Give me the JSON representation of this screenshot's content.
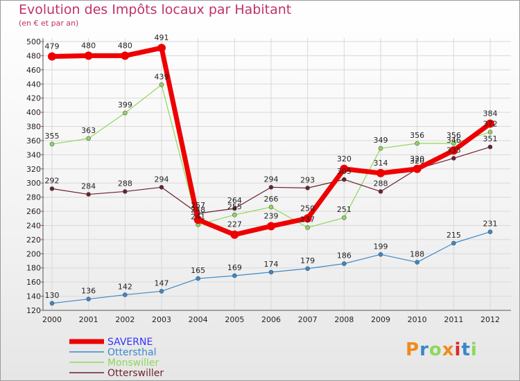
{
  "title": "Evolution des Impôts locaux par Habitant",
  "subtitle": "(en € et par an)",
  "logo_text": "Proxiti",
  "chart_data": {
    "type": "line",
    "title": "Evolution des Impôts locaux par Habitant",
    "subtitle": "(en € et par an)",
    "xlabel": "",
    "ylabel": "",
    "x": [
      "2000",
      "2001",
      "2002",
      "2003",
      "2004",
      "2005",
      "2006",
      "2007",
      "2008",
      "2009",
      "2010",
      "2011",
      "2012"
    ],
    "ylim": [
      120,
      500
    ],
    "yticks": [
      120,
      140,
      160,
      180,
      200,
      220,
      240,
      260,
      280,
      300,
      320,
      340,
      360,
      380,
      400,
      420,
      440,
      460,
      480,
      500
    ],
    "grid": true,
    "legend": "bottom-left",
    "series": [
      {
        "name": "Ottersthal",
        "color": "#3a87c8",
        "width": 1.2,
        "values": [
          130,
          136,
          142,
          147,
          165,
          169,
          174,
          179,
          186,
          199,
          188,
          215,
          231
        ]
      },
      {
        "name": "Monswiller",
        "color": "#8ed85a",
        "width": 1.2,
        "values": [
          355,
          363,
          399,
          439,
          241,
          255,
          266,
          237,
          251,
          349,
          356,
          356,
          372
        ]
      },
      {
        "name": "Otterswiller",
        "color": "#6a1f2c",
        "width": 1.2,
        "values": [
          292,
          284,
          288,
          294,
          257,
          264,
          294,
          293,
          305,
          288,
          320,
          335,
          351
        ]
      },
      {
        "name": "SAVERNE",
        "color": "#ee0000",
        "width": 7,
        "values": [
          479,
          480,
          480,
          491,
          248,
          227,
          239,
          250,
          320,
          314,
          320,
          346,
          384
        ]
      }
    ],
    "legend_order": [
      "SAVERNE",
      "Ottersthal",
      "Monswiller",
      "Otterswiller"
    ],
    "legend_colors": {
      "SAVERNE": "#3333ff",
      "Ottersthal": "#3a87c8",
      "Monswiller": "#8ed85a",
      "Otterswiller": "#6a1f2c"
    }
  }
}
